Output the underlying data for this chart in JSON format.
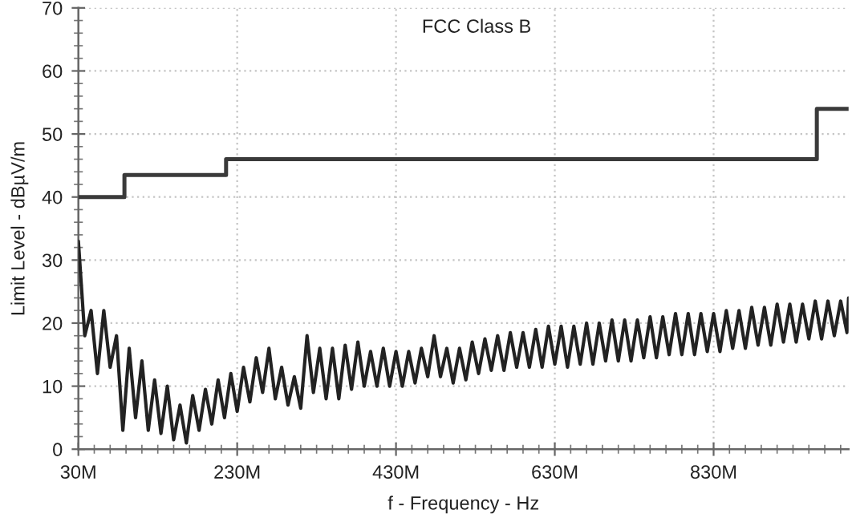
{
  "chart_data": {
    "type": "line",
    "title": "FCC Class B",
    "xlabel": "f - Frequency - Hz",
    "ylabel": "Limit Level - dBµV/m",
    "xlim": [
      30000000,
      1000000000
    ],
    "xticks": [
      {
        "value": 30000000,
        "label": "30M"
      },
      {
        "value": 50000000,
        "label": null
      },
      {
        "value": 70000000,
        "label": null
      },
      {
        "value": 90000000,
        "label": null
      },
      {
        "value": 110000000,
        "label": null
      },
      {
        "value": 130000000,
        "label": null
      },
      {
        "value": 150000000,
        "label": null
      },
      {
        "value": 170000000,
        "label": null
      },
      {
        "value": 190000000,
        "label": null
      },
      {
        "value": 210000000,
        "label": null
      },
      {
        "value": 230000000,
        "label": "230M"
      },
      {
        "value": 250000000,
        "label": null
      },
      {
        "value": 270000000,
        "label": null
      },
      {
        "value": 290000000,
        "label": null
      },
      {
        "value": 310000000,
        "label": null
      },
      {
        "value": 330000000,
        "label": null
      },
      {
        "value": 350000000,
        "label": null
      },
      {
        "value": 370000000,
        "label": null
      },
      {
        "value": 390000000,
        "label": null
      },
      {
        "value": 410000000,
        "label": null
      },
      {
        "value": 430000000,
        "label": "430M"
      },
      {
        "value": 450000000,
        "label": null
      },
      {
        "value": 470000000,
        "label": null
      },
      {
        "value": 490000000,
        "label": null
      },
      {
        "value": 510000000,
        "label": null
      },
      {
        "value": 530000000,
        "label": null
      },
      {
        "value": 550000000,
        "label": null
      },
      {
        "value": 570000000,
        "label": null
      },
      {
        "value": 590000000,
        "label": null
      },
      {
        "value": 610000000,
        "label": null
      },
      {
        "value": 630000000,
        "label": "630M"
      },
      {
        "value": 650000000,
        "label": null
      },
      {
        "value": 670000000,
        "label": null
      },
      {
        "value": 690000000,
        "label": null
      },
      {
        "value": 710000000,
        "label": null
      },
      {
        "value": 730000000,
        "label": null
      },
      {
        "value": 750000000,
        "label": null
      },
      {
        "value": 770000000,
        "label": null
      },
      {
        "value": 790000000,
        "label": null
      },
      {
        "value": 810000000,
        "label": null
      },
      {
        "value": 830000000,
        "label": "830M"
      },
      {
        "value": 850000000,
        "label": null
      },
      {
        "value": 870000000,
        "label": null
      },
      {
        "value": 890000000,
        "label": null
      },
      {
        "value": 910000000,
        "label": null
      },
      {
        "value": 930000000,
        "label": null
      },
      {
        "value": 950000000,
        "label": null
      },
      {
        "value": 970000000,
        "label": null
      },
      {
        "value": 990000000,
        "label": null
      }
    ],
    "ylim": [
      0,
      70
    ],
    "yticks": [
      0,
      {
        "value": 2,
        "label": null
      },
      {
        "value": 4,
        "label": null
      },
      {
        "value": 6,
        "label": null
      },
      {
        "value": 8,
        "label": null
      },
      10,
      {
        "value": 12,
        "label": null
      },
      {
        "value": 14,
        "label": null
      },
      {
        "value": 16,
        "label": null
      },
      {
        "value": 18,
        "label": null
      },
      20,
      {
        "value": 22,
        "label": null
      },
      {
        "value": 24,
        "label": null
      },
      {
        "value": 26,
        "label": null
      },
      {
        "value": 28,
        "label": null
      },
      30,
      {
        "value": 32,
        "label": null
      },
      {
        "value": 34,
        "label": null
      },
      {
        "value": 36,
        "label": null
      },
      {
        "value": 38,
        "label": null
      },
      40,
      {
        "value": 42,
        "label": null
      },
      {
        "value": 44,
        "label": null
      },
      {
        "value": 46,
        "label": null
      },
      {
        "value": 48,
        "label": null
      },
      50,
      {
        "value": 52,
        "label": null
      },
      {
        "value": 54,
        "label": null
      },
      {
        "value": 56,
        "label": null
      },
      {
        "value": 58,
        "label": null
      },
      60,
      {
        "value": 62,
        "label": null
      },
      {
        "value": 64,
        "label": null
      },
      {
        "value": 66,
        "label": null
      },
      {
        "value": 68,
        "label": null
      },
      70
    ],
    "grid": true,
    "series": [
      {
        "type": "step",
        "color": "#3a3a3a",
        "x": [
          30000000,
          88000000,
          216000000,
          960000000,
          1000000000
        ],
        "values": [
          40,
          43.5,
          46,
          54,
          54
        ]
      },
      {
        "color": "#222222",
        "x": [
          30000000,
          38000000,
          46000000,
          54000000,
          62000000,
          70000000,
          78000000,
          86000000,
          94000000,
          102000000,
          110000000,
          118000000,
          126000000,
          134000000,
          142000000,
          150000000,
          158000000,
          166000000,
          174000000,
          182000000,
          190000000,
          198000000,
          206000000,
          214000000,
          222000000,
          230000000,
          238000000,
          246000000,
          254000000,
          262000000,
          270000000,
          278000000,
          286000000,
          294000000,
          302000000,
          310000000,
          318000000,
          326000000,
          334000000,
          342000000,
          350000000,
          358000000,
          366000000,
          374000000,
          382000000,
          390000000,
          398000000,
          406000000,
          414000000,
          422000000,
          430000000,
          438000000,
          446000000,
          454000000,
          462000000,
          470000000,
          478000000,
          486000000,
          494000000,
          502000000,
          510000000,
          518000000,
          526000000,
          534000000,
          542000000,
          550000000,
          558000000,
          566000000,
          574000000,
          582000000,
          590000000,
          598000000,
          606000000,
          614000000,
          622000000,
          630000000,
          638000000,
          646000000,
          654000000,
          662000000,
          670000000,
          678000000,
          686000000,
          694000000,
          702000000,
          710000000,
          718000000,
          726000000,
          734000000,
          742000000,
          750000000,
          758000000,
          766000000,
          774000000,
          782000000,
          790000000,
          798000000,
          806000000,
          814000000,
          822000000,
          830000000,
          838000000,
          846000000,
          854000000,
          862000000,
          870000000,
          878000000,
          886000000,
          894000000,
          902000000,
          910000000,
          918000000,
          926000000,
          934000000,
          942000000,
          950000000,
          958000000,
          966000000,
          974000000,
          982000000,
          990000000,
          998000000,
          1000000000
        ],
        "values": [
          33,
          18,
          22,
          12,
          22,
          13,
          18,
          3,
          16,
          5,
          14,
          3,
          11,
          2.5,
          10,
          1.5,
          7,
          1,
          8.5,
          3,
          9.5,
          4,
          11,
          5,
          12,
          6,
          13,
          7.5,
          14.5,
          9,
          16,
          8,
          13,
          7,
          11.5,
          6.5,
          18,
          9,
          16,
          8,
          16,
          8,
          16.5,
          9.5,
          17,
          10,
          15.5,
          10,
          16,
          10,
          15.5,
          10,
          15.5,
          10.5,
          16,
          11.5,
          18,
          11.5,
          16,
          10.5,
          16,
          11,
          17,
          12,
          17.5,
          12.5,
          18,
          12.5,
          18.5,
          13,
          18.5,
          13,
          19,
          13,
          19.5,
          13.5,
          19.5,
          13,
          19.5,
          13.5,
          20,
          13.5,
          20,
          14,
          20.5,
          14,
          20.5,
          14,
          20.5,
          14.5,
          21,
          14.5,
          21,
          15,
          21.5,
          15,
          21.5,
          15,
          21.5,
          15.5,
          21.5,
          15.5,
          22,
          16,
          22,
          16,
          22.5,
          16.5,
          22.5,
          16.5,
          23,
          17,
          23,
          17,
          23,
          17.5,
          23.5,
          17.5,
          23.5,
          18,
          23.5,
          18.5,
          24
        ]
      }
    ]
  }
}
